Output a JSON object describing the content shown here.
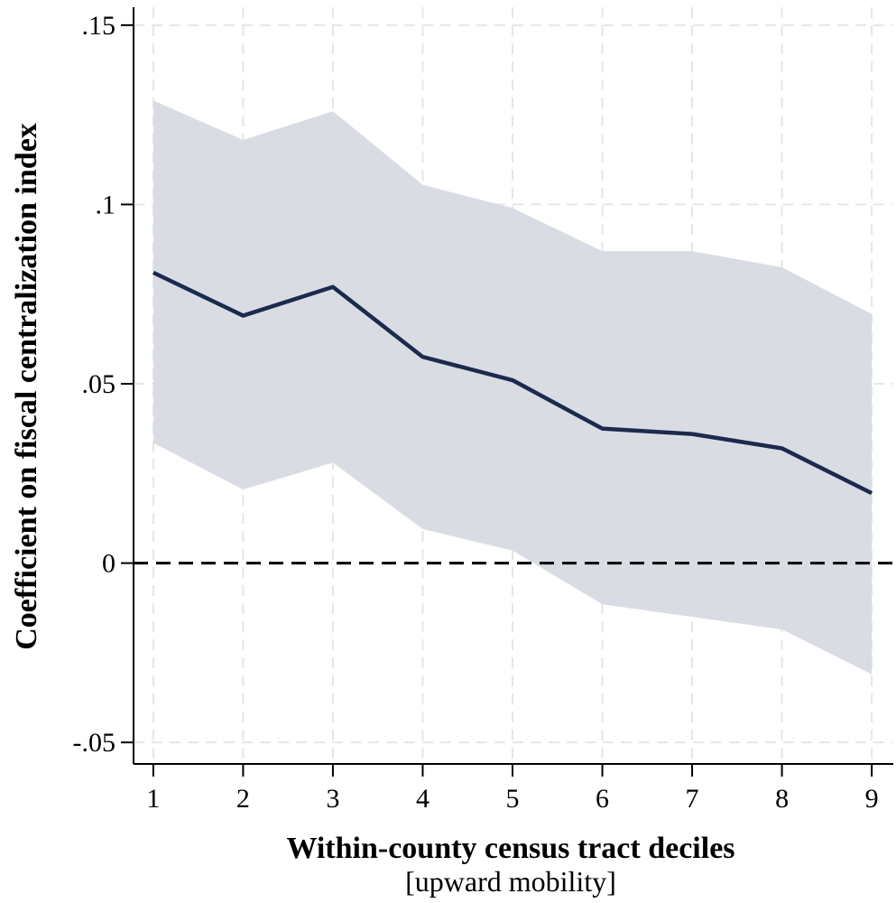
{
  "chart_data": {
    "type": "line",
    "title": "",
    "xlabel": "Within-county census tract deciles",
    "xlabel_sub": "[upward mobility]",
    "ylabel": "Coefficient on fiscal centralization index",
    "x": [
      1,
      2,
      3,
      4,
      5,
      6,
      7,
      8,
      9
    ],
    "x_tick_labels": [
      "1",
      "2",
      "3",
      "4",
      "5",
      "6",
      "7",
      "8",
      "9"
    ],
    "y_ticks": [
      -0.05,
      0,
      0.05,
      0.1,
      0.15
    ],
    "y_tick_labels": [
      "-.05",
      "0",
      ".05",
      ".1",
      ".15"
    ],
    "xlim": [
      0.78,
      9.24
    ],
    "ylim": [
      -0.056,
      0.155
    ],
    "grid": true,
    "reference_line": {
      "y": 0,
      "style": "dashed"
    },
    "series": [
      {
        "name": "Coefficient",
        "values": [
          0.081,
          0.069,
          0.077,
          0.0575,
          0.051,
          0.0375,
          0.036,
          0.032,
          0.0195
        ],
        "ci_lower": [
          0.0335,
          0.0205,
          0.028,
          0.0095,
          0.0035,
          -0.0115,
          -0.015,
          -0.0185,
          -0.031
        ],
        "ci_upper": [
          0.129,
          0.118,
          0.126,
          0.1055,
          0.099,
          0.087,
          0.087,
          0.0825,
          0.0695
        ]
      }
    ],
    "colors": {
      "line": "#1b2a4e",
      "band": "#d9dde3",
      "grid": "#e6e6e6",
      "axis": "#000000",
      "zero_line": "#000000"
    }
  }
}
